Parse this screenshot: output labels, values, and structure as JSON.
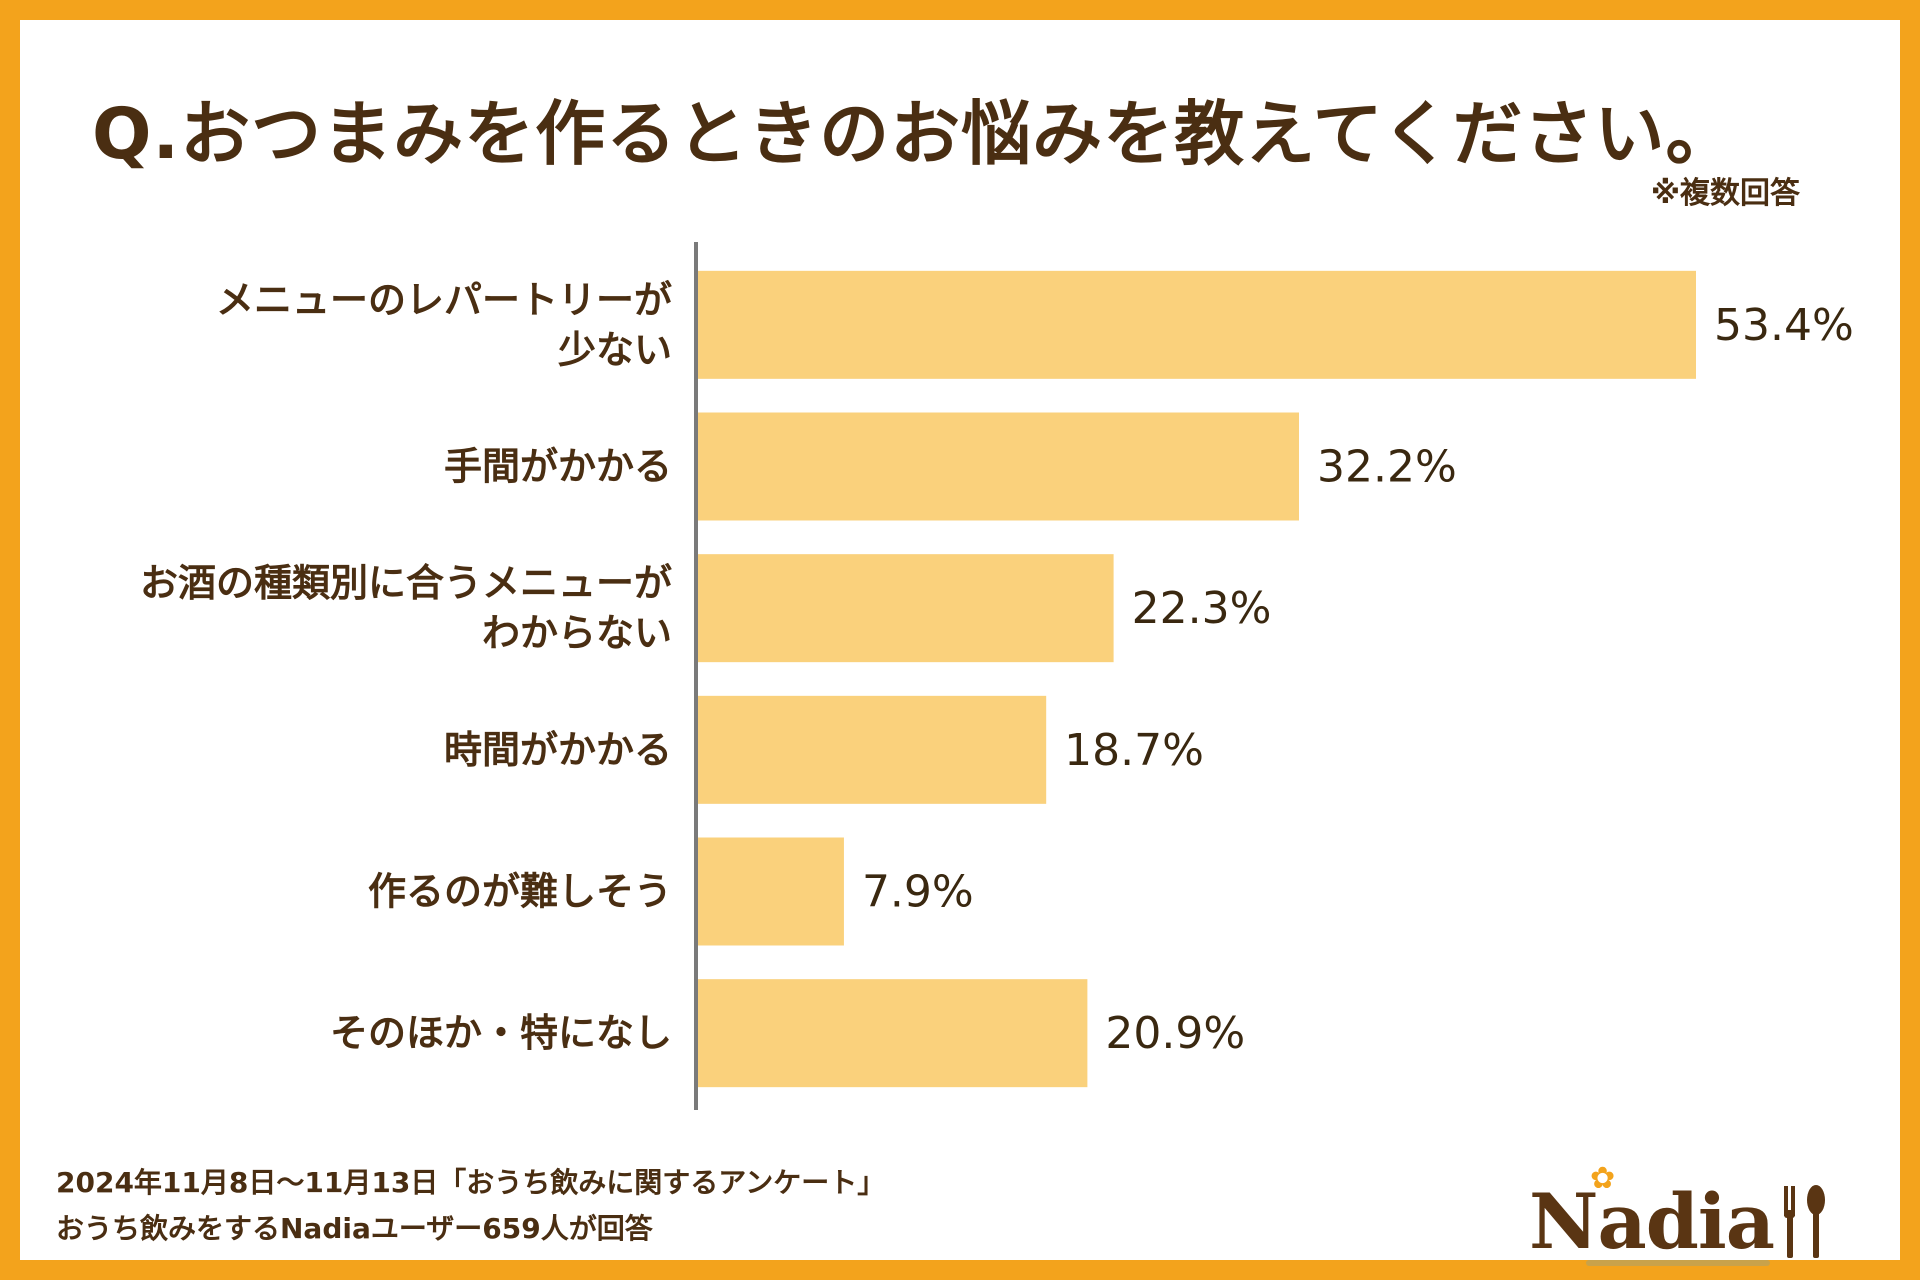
{
  "title": "Q.おつまみを作るときのお悩みを教えてください。",
  "note": "※複数回答",
  "footer": {
    "line1": "2024年11月8日〜11月13日「おうち飲みに関するアンケート」",
    "line2": "おうち飲みをするNadiaユーザー659人が回答"
  },
  "logo": {
    "text": "Nadia",
    "flower_icon": "flower-icon",
    "utensils_icon": "fork-spoon-icon"
  },
  "colors": {
    "frame": "#f3a31c",
    "bar": "#fad17c",
    "axis": "#7a7a7a",
    "text": "#4a2e12"
  },
  "chart_data": {
    "type": "bar",
    "orientation": "horizontal",
    "categories": [
      [
        "メニューのレパートリーが",
        "少ない"
      ],
      [
        "手間がかかる"
      ],
      [
        "お酒の種類別に合うメニューが",
        "わからない"
      ],
      [
        "時間がかかる"
      ],
      [
        "作るのが難しそう"
      ],
      [
        "そのほか・特になし"
      ]
    ],
    "values": [
      53.4,
      32.2,
      22.3,
      18.7,
      7.9,
      20.9
    ],
    "value_labels": [
      "53.4%",
      "32.2%",
      "22.3%",
      "18.7%",
      "7.9%",
      "20.9%"
    ],
    "unit": "%",
    "xlim": [
      0,
      53.4
    ],
    "grid": false,
    "legend": "none"
  }
}
